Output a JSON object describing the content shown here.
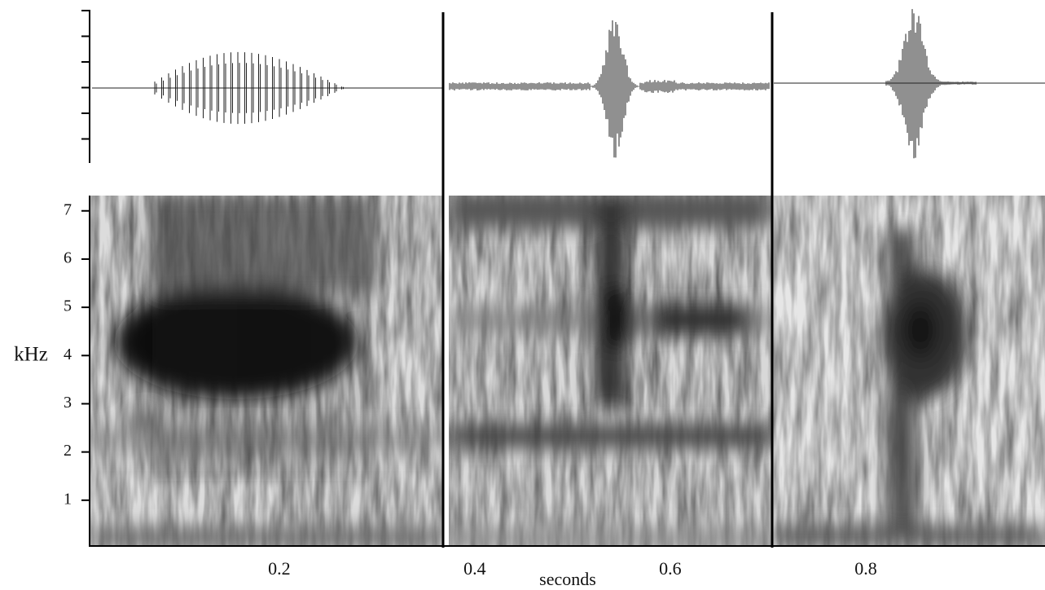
{
  "chart_data": {
    "type": "spectrogram",
    "x_label": "seconds",
    "y_label": "kHz",
    "xlim": [
      0.006,
      0.98
    ],
    "xticks": [
      0.2,
      0.4,
      0.6,
      0.8
    ],
    "ylim": [
      0,
      7.3
    ],
    "yticks": [
      1,
      2,
      3,
      4,
      5,
      6,
      7
    ]
  }
}
